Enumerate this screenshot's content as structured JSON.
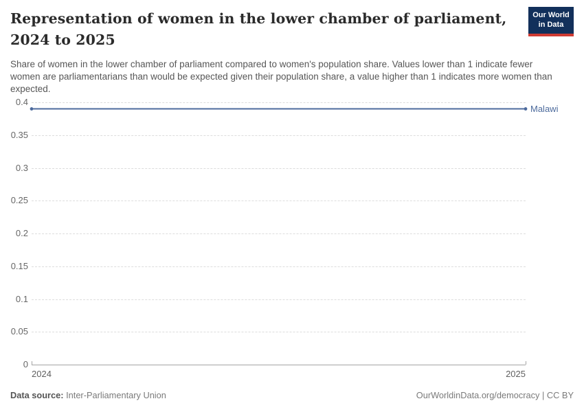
{
  "header": {
    "title": "Representation of women in the lower chamber of parliament, 2024 to 2025",
    "subtitle": "Share of women in the lower chamber of parliament compared to women's population share. Values lower than 1 indicate fewer women are parliamentarians than would be expected given their population share, a value higher than 1 indicates more women than expected.",
    "logo": {
      "line1": "Our World",
      "line2": "in Data"
    }
  },
  "chart_data": {
    "type": "line",
    "title": "Representation of women in the lower chamber of parliament, 2024 to 2025",
    "x": [
      2024,
      2025
    ],
    "xtick_labels": [
      "2024",
      "2025"
    ],
    "series": [
      {
        "name": "Malawi",
        "values": [
          0.39,
          0.39
        ],
        "color": "#4C6A9C"
      }
    ],
    "ylim": [
      0,
      0.4
    ],
    "yticks": [
      0,
      0.05,
      0.1,
      0.15,
      0.2,
      0.25,
      0.3,
      0.35,
      0.4
    ],
    "ytick_labels": [
      "0",
      "0.05",
      "0.1",
      "0.15",
      "0.2",
      "0.25",
      "0.3",
      "0.35",
      "0.4"
    ],
    "grid": "horizontal-dashed",
    "legend_position": "line-end-label"
  },
  "colors": {
    "accent_line": "#4C6A9C",
    "logo_navy": "#12305b",
    "logo_red": "#cf3b33",
    "gridline": "#dcdcdc",
    "axis": "#a3a3a3"
  },
  "footer": {
    "source_label": "Data source:",
    "source_value": " Inter-Parliamentary Union",
    "right_text": "OurWorldinData.org/democracy | CC BY"
  }
}
